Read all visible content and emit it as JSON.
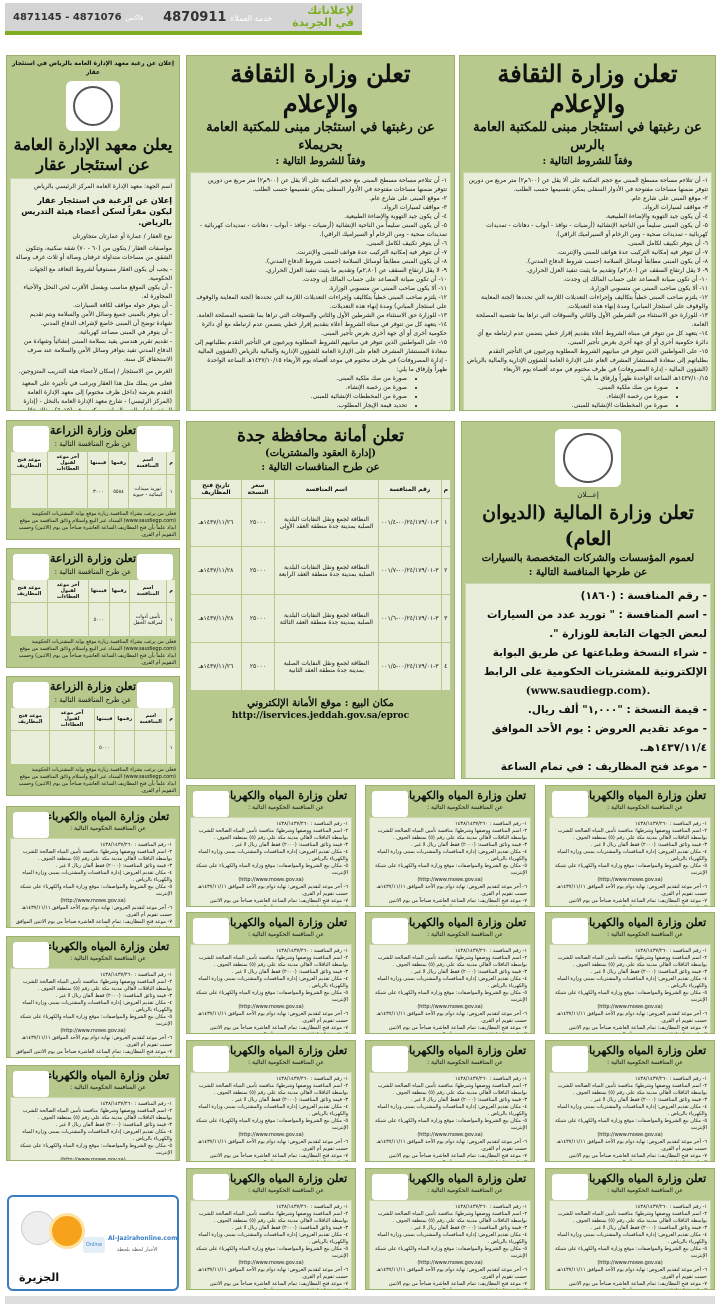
{
  "header": {
    "brand_line1": "لإعلاناتك",
    "brand_line2": "في الجريدة",
    "customer_service_label": "خدمة العملاء",
    "customer_service_phone": "4870911",
    "fax_label": "فاكس",
    "fax_numbers": "4871145 - 4871076",
    "accent": "#7cae1f"
  },
  "culture_rass": {
    "title": "تعلن وزارة الثقافة والإعلام",
    "subtitle": "عن رغبتها في استئجار مبنى للمكتبة العامة بالرس",
    "conditions_label": "وفقاً للشروط التالية :",
    "items": [
      "١- أن تتلاءم مساحة مسطح المبنى مع حجم المكتبة على ألا يقل عن (٦٠٠م٢) متر مربع من دورين تتوفر ضمنها مساحات مفتوحة في الأدوار السفلى يمكن تقسيمها حسب الطلب.",
      "٢- موقع المبنى على شارع عام.",
      "٣- مواقف لسيارات الرواد.",
      "٤- أن يكون جيد التهوية والإضاءة الطبيعية.",
      "٥- أن يكون المبنى سليماً من الناحية الإنشائية (أرضيات - نوافذ - أبواب - دهانات - تمديدات كهربائية - تمديدات صحية - ومن الرخام أو السيراميك الراقي).",
      "٦- أن يتوفر تكييف لكامل المبنى.",
      "٧- أن تتوفر فيه إمكانية التركيب عدة هواتف للمبنى والإنترنت.",
      "٨- أن يكون المبنى مطابقاً لوسائل السلامة (حسب شروط الدفاع المدني).",
      "٩- لا يقل ارتفاع السقف عن (٢,٨٠م) وتقديم ما يثبت تنفيذ العزل الحراري.",
      "١٠- أن تكون صيانة المصاعد على حساب المالك إن وجدت.",
      "١١- ألا يكون صاحب المبنى من منسوبي الوزارة.",
      "١٢- يلتزم صاحب المبنى خطياً بتكاليف وإجراءات التعديلات اللازمة التي تحددها (لجنة المعاينة والوقوف على استئجار المباني) ومدة إنهاء هذه التعديلات.",
      "١٣- للوزارة حق الاستثناء من الشرطين الأول والثاني والسوقات التي تراها بما تقتضيه المصلحة العامة.",
      "١٤- يتعهد كل من تتوفر في مبناه الشروط أعلاه بتقديم إقرار خطي بتضمن عدم ارتباطه مع أي دائرة حكومية أخرى أو أي جهة أخرى بغرض تأجير المبنى.",
      "١٥- على المواطنين الذين تتوفر في مبانيهم الشروط المطلوبة ويرغبون في التأجير التقدم بطلباتهم إلى سعادة المستشار المشرف العام على الإدارة العامة للشؤون الإدارية والمالية بالرياض (الشؤون المالية - إدارة المصروفات) في ظرف مختوم في موعد أقصاه يوم الأربعاء ١٤٣٧/١٠/١٥هـ الساعة الواحدة ظهراً وإرفاق ما يلي:"
    ],
    "attachments": [
      "صورة من صك ملكية المبنى.",
      "صورة من رخصة الإنشاء.",
      "صورة من المخططات الإنشائية للمبنى.",
      "تحديد قيمة الإيجار المطلوب.",
      "شهادة من الدفاع المدني.",
      "شهادة من مكتب هندسي يفيد بسلامة المبنى.",
      "ألا يتم الاعتراض من مجاوري المبنى المعروض للإيجار."
    ]
  },
  "culture_huraymila": {
    "title": "تعلن وزارة الثقافة والإعلام",
    "subtitle": "عن رغبتها في استئجار مبنى للمكتبة العامة بحريملاء",
    "conditions_label": "وفقاً للشروط التالية :",
    "first_item": "١- أن تتلاءم مساحة مسطح المبنى مع حجم المكتبة على ألا يقل عن (٩٠٠م٢) متر مربع من دورين تتوفر ضمنها مساحات مفتوحة في الأدوار السفلى يمكن تقسيمها حسب الطلب."
  },
  "ipa": {
    "top_line": "إعلان عن رغبة معهد الإدارة العامة بالرياض في استئجار عقار",
    "title": "يعلن معهد الإدارة العامة",
    "title2": "عن استئجار عقار",
    "entity": "اسم الجهة: معهد الإدارة العامة المركز الرئيسي بالرياض",
    "headline": "إعلان عن الرغبة في استئجار عقار ليكون مقراً لسكن أعضاء هيئة التدريس بالرياض.",
    "type": "نوع العقار / عمارة أو عمارتان متجاورتان",
    "specs": "مواصفات العقار / يتكون من (٦٠ - ٧٠) شقة سكنية، وتتكون الشقق من مساحات متداولة غرفتان وصالة أو ثلاث غرف وصالة",
    "conditions": [
      "- يجب أن يكون العقار مستوفياً لشروط التعاقد مع الجهات الحكومية.",
      "- أن يكون الموقع مناسب ويفضل الأقرب لحي النخل والأحياء المجاورة له.",
      "- أن يتوفر حوله مواقف لكافة السيارات.",
      "- أن يتوفر بالمبنى جميع وسائل الأمن والسلامة ويتم تقديم شهادة توضح أن المبنى خاضع لإشراف الدفاع المدني.",
      "- أن يتوفر في المبنى مصاعد كهربائية.",
      "- تقديم تقرير هندسي يفيد بسلامة المبنى إنشائياً وشهادة من الدفاع المدني تفيد بتوافر وسائل الأمن والسلامة عند صرف الاستحقاق كل سنة."
    ],
    "purpose": "الغرض من الاستئجار / إسكان لأعضاء هيئة التدريب المتزوجين.",
    "closing": "فعلى من يملك مثل هذا العقار ويرغب في تأجيره على المعهد التقدم بعرضه (داخل ظرف مختوم) إلى معهد الإدارة العامة (المركز الرئيسي) - شارع معهد الإدارة العامة بالنخل - (إدارة المشتريات) - الدور السادس مكتب رقم (٦٠١٥)، وذلك خلال شهر من تاريخه مرفقاً به صورة من مخطط المبنى ونسخة من كروكي الموقع وعنوان المالك كاملاً."
  },
  "finance": {
    "announcement": "إعـــلان",
    "title": "تعلن وزارة المالية (الديوان العام)",
    "subtitle1": "لعموم المؤسسات والشركات المتخصصة بالسيارات",
    "subtitle2": "عن طرحها المنافسة التالية :",
    "logo_text": "MINISTRY OF FINANCE",
    "items": [
      "- رقم المنافسة : (١٨٦٠)",
      "- اسم المنافسة : \" توريد عدد من السيارات لبعض الجهات التابعة للوزارة \".",
      "- شراء النسخة وطباعتها عن طريق البوابة الإلكترونية للمشتريات الحكومية على الرابط",
      "(www.saudiegp.com).",
      "- قيمة النسخة : \"١,٠٠٠\" ألف ريال.",
      "- موعد تقديم العروض : يوم الأحد الموافق ١٤٣٧/١١/٤هـ.",
      "- موعد فتح المظاريف : في تمام الساعة العاشرة من صباح اليوم التالي لتقديم العروض... وبالله التوفيق ..."
    ]
  },
  "jeddah": {
    "title": "تعلن أمانة محافظة جدة",
    "subtitle": "(إدارة العقود والمشتريات)",
    "subtitle2": "عن طرح المنافسات التالية :",
    "columns": [
      "م",
      "رقم المنافسة",
      "اسم المنافسة",
      "سعر النسخة",
      "تاريخ فتح المظاريف"
    ],
    "rows": [
      [
        "١",
        "٣-٠٠/٢٤/١٧٩/٠١-٠٠١/٤",
        "النظافة لجمع ونقل النفايات البلدية الصلبة بمدينة جدة منطقة العقد الأولى",
        "٢٥٠٠٠",
        "١٤٣٧/١١/٢٦هـ"
      ],
      [
        "٢",
        "٣-٠٠/٢٤/١٧٩/٠١-٠٠١/٧",
        "النظافة لجمع ونقل النفايات البلدية الصلبة بمدينة جدة منطقة العقد الرابعة",
        "٢٥٠٠٠",
        "١٤٣٧/١١/٢٨هـ"
      ],
      [
        "٣",
        "٣-٠٠/٢٤/١٧٩/٠١-٠٠١/٦",
        "النظافة لجمع ونقل النفايات البلدية الصلبة بمدينة جدة منطقة العقد الثالثة",
        "٢٥٠٠٠",
        "١٤٣٧/١١/٢٨هـ"
      ],
      [
        "٤",
        "٣-٠٠/٢٤/١٧٩/٠١-٠٠١/٥",
        "النظافة لجمع ونقل النفايات الصلبة بمدينة جدة منطقة العقد الثانية",
        "٢٥٠٠٠",
        "١٤٣٧/١١/٢٦هـ"
      ]
    ],
    "sale_place": "مكان البيع : موقع الأمانة الإلكتروني",
    "url": "http://iservices.jeddah.gov.sa/eproc"
  },
  "agriculture": {
    "title": "تعلن وزارة الزراعة",
    "subtitle": "عن طرح المنافسة التالية :",
    "columns": [
      "م",
      "اسم المنافسة",
      "رقمها",
      "قيمتها",
      "آخر موعد لقبول العطاءات",
      "موعد فتح المظاريف"
    ],
    "ads": [
      {
        "row": [
          "١",
          "توريد مبيدات كيمائية - حيوية",
          "٥٥٨٤",
          "٣٠٠٠",
          "",
          ""
        ]
      },
      {
        "row": [
          "١",
          "تأمين أدوات لمراقبة الحقل",
          "",
          "٥٠٠٠",
          "",
          ""
        ]
      },
      {
        "row": [
          "١",
          "",
          "",
          "٥٠٠٠",
          "",
          ""
        ]
      }
    ],
    "footer": "فعلى من يرغب بشراء المنافسة زيارة موقع بوابة المشتريات الحكومية (www.saudiegp.com) السداد عبر البيع واستلام وثائق المنافسة من موقع ايداد علماً بأن فتح المظاريف الساعة العاشرة صباحاً من يوم (الاثنين) وحسب التقويم أم القرى."
  },
  "water": {
    "title": "تعلن وزارة المياه والكهرباء",
    "subtitle": "عن المنافسة الحكومية التالية :",
    "lines": [
      "١- رقم المنافسة : ١٤٣٨/١٤٣٧/٢٦٠",
      "٢- اسم المنافسة ووصفها وشرطها: منافسة تأمين المياه الصالحة للشرب بواسطة الناقلات لأهالي مدينة مكة على رقم (٥) بمنطقة الجوف .",
      "٣- قيمة وثائق المنافسة: (٢٠٠٠) فقط ألفان ريال لا غير .",
      "٤- مكان تقديم العروض: إدارة المنافسات والمشتريات بمبنى وزارة المياه والكهرباء بالرياض .",
      "٥- مكان بيع الشروط والمواصفات: موقع وزارة المياه والكهرباء على شبكة الإنترنت",
      "(http://www.mowe.gov.sa)",
      "٦- آخر موعد لتقديم العروض: نهاية دوام يوم الأحد الموافق ١٤٣٧/١١/١١هـ حسب تقويم أم القرى.",
      "٧- موعد فتح المظاريف: تمام الساعة العاشرة صباحاً من يوم الاثنين الموافق ١٤٣٧/١١/١٢هـ حسب تقويم أم القرى.",
      "٨- مجال التصنيف : -        والله الموفق ..."
    ],
    "count": 15
  },
  "jazirah": {
    "site": "Al-Jazirahonline.com",
    "tagline": "الأخبار لحظة بلحظة",
    "online": "Online",
    "logo": "الجزيرة",
    "border": "#3a7ec2"
  }
}
